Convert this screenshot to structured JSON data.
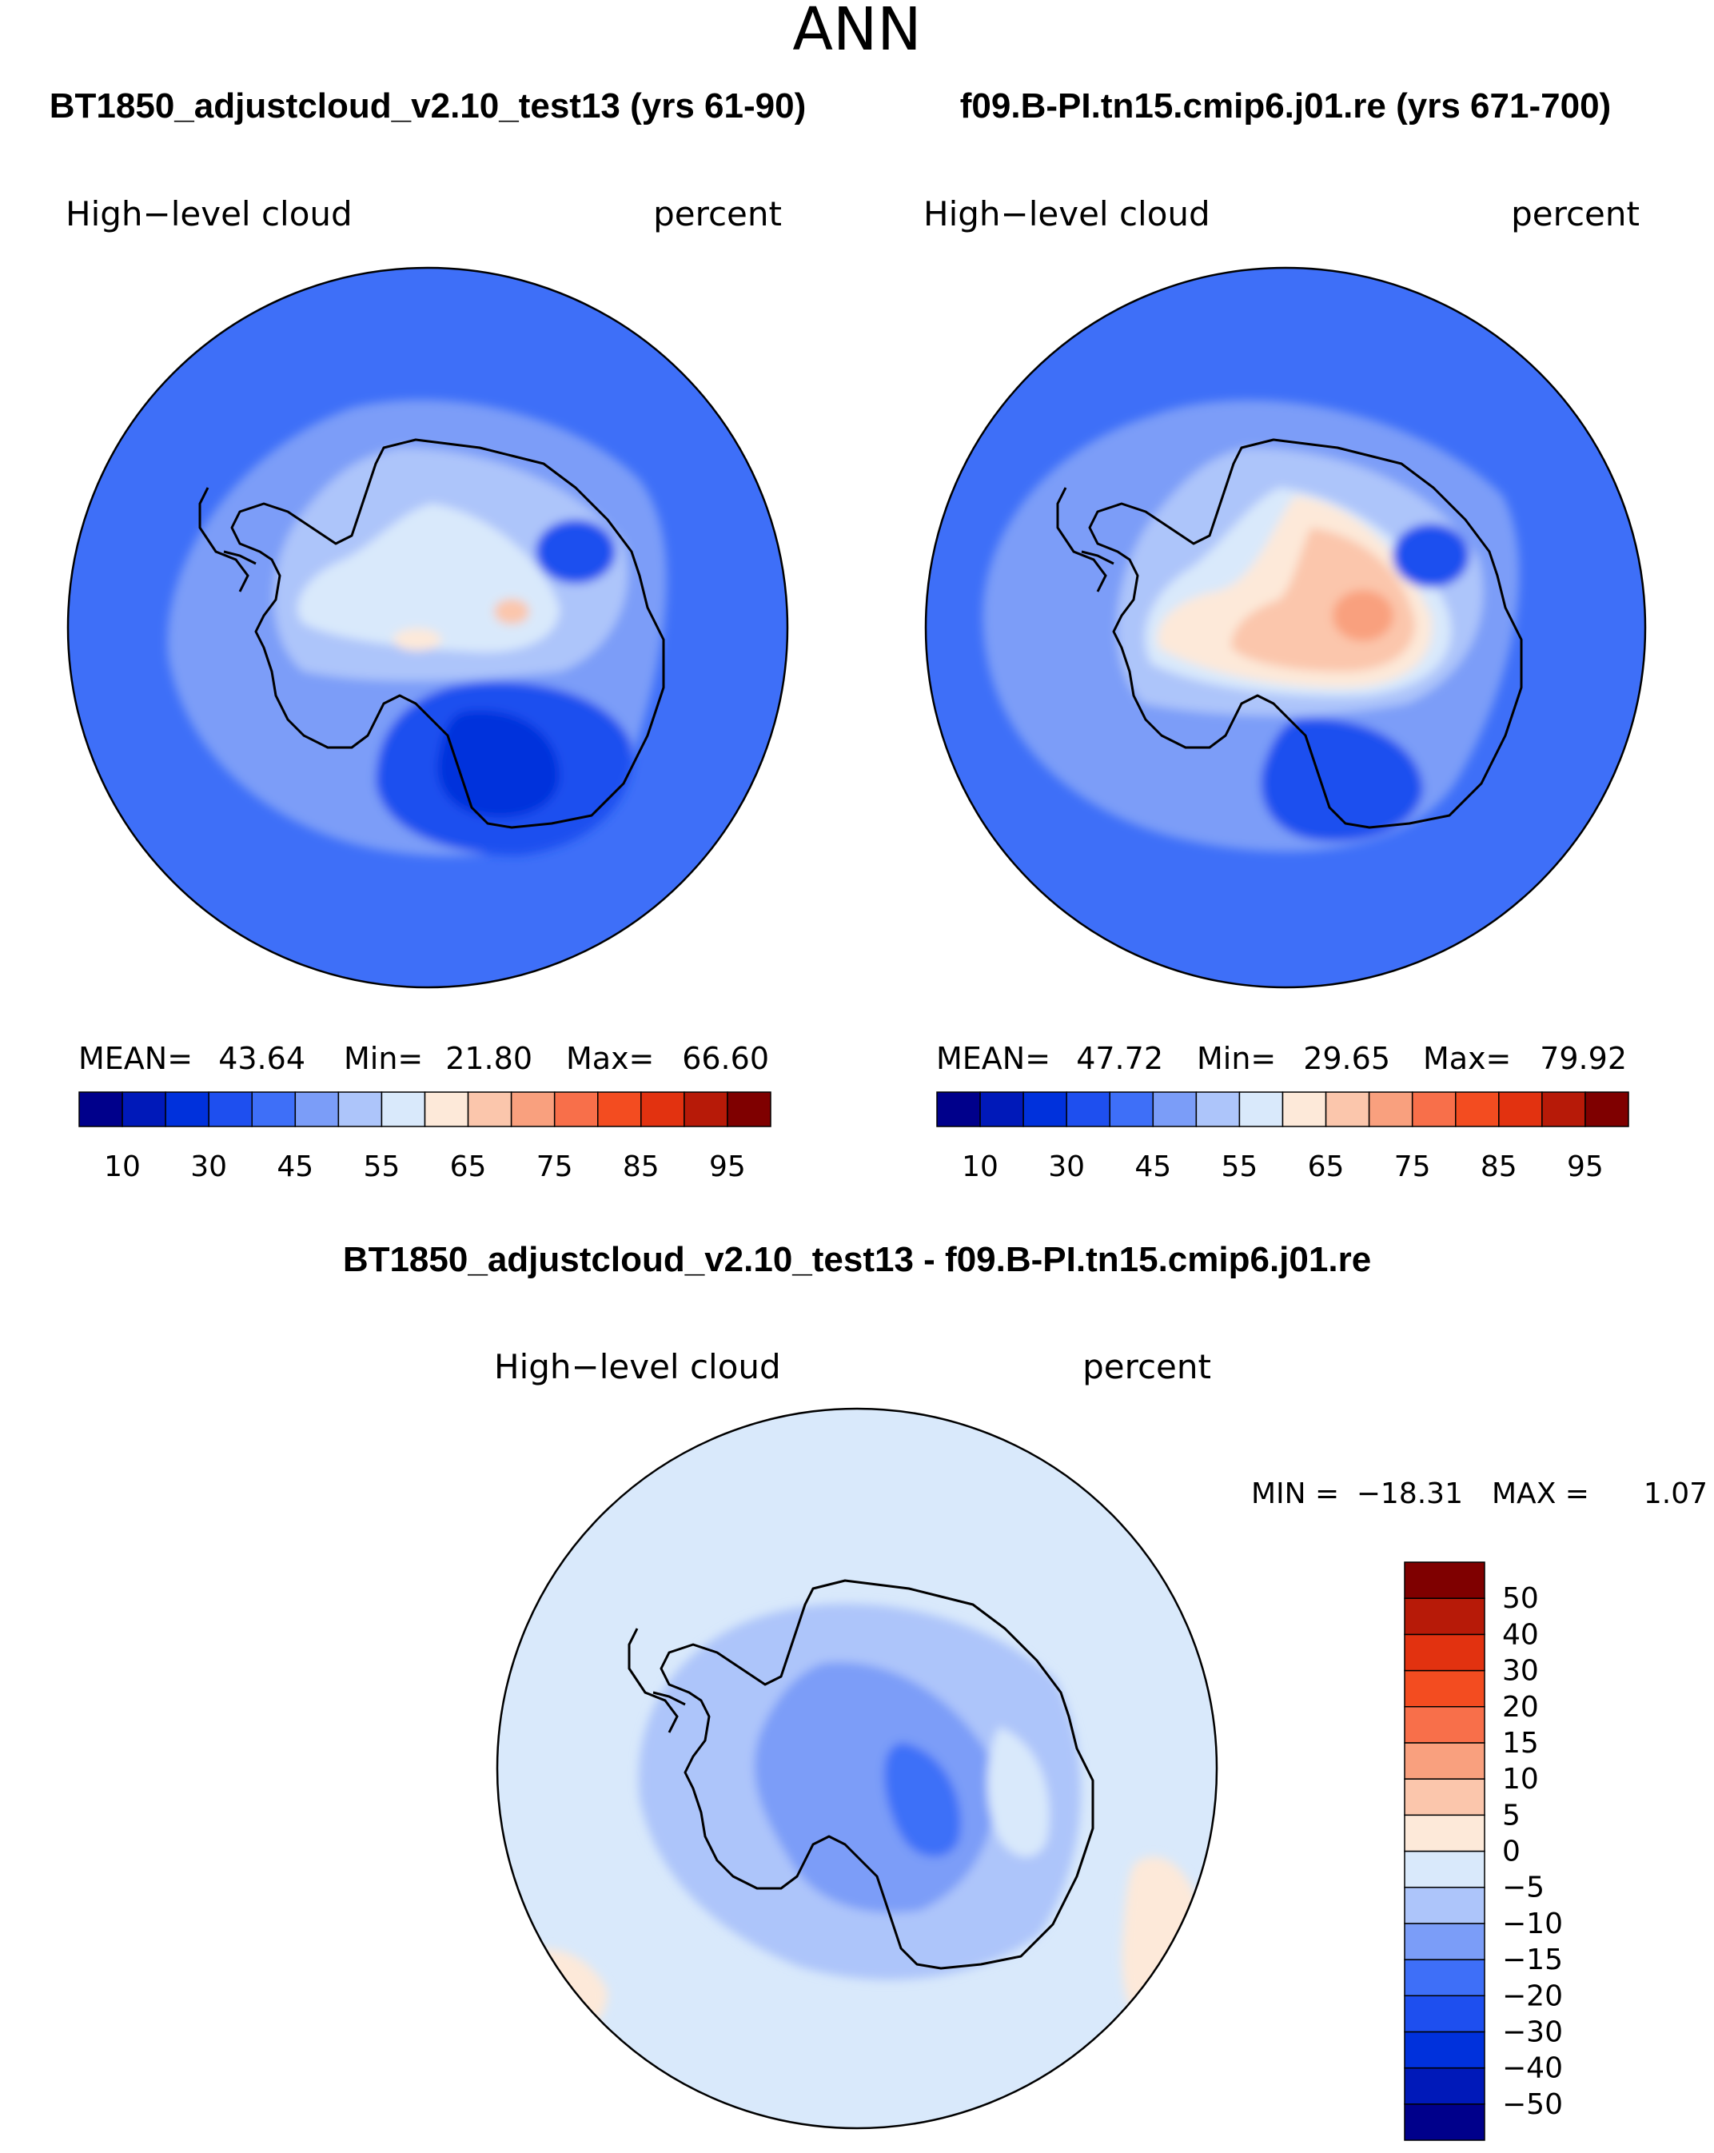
{
  "page": {
    "season": "ANN",
    "top_left_title": "BT1850_adjustcloud_v2.10_test13 (yrs 61-90)",
    "top_right_title": "f09.B-PI.tn15.cmip6.j01.re (yrs 671-700)",
    "bottom_title": "BT1850_adjustcloud_v2.10_test13 - f09.B-PI.tn15.cmip6.j01.re"
  },
  "colors": {
    "abs_scale": [
      "#00008b",
      "#0019b9",
      "#0031dc",
      "#1e4fef",
      "#3e6ff8",
      "#7b9df8",
      "#adc5fa",
      "#d9e9fb",
      "#fde9d9",
      "#fbc6ac",
      "#f9a07e",
      "#f86f4a",
      "#f34c20",
      "#e23210",
      "#b71a08",
      "#7f0000"
    ],
    "diff_scale": [
      "#00008b",
      "#0019b9",
      "#0031dc",
      "#1e4fef",
      "#3e6ff8",
      "#7b9df8",
      "#adc5fa",
      "#d9e9fb",
      "#fde9d9",
      "#fbc6ac",
      "#f9a07e",
      "#f86f4a",
      "#f34c20",
      "#e23210",
      "#b71a08",
      "#7f0000"
    ],
    "coastline": "#000000"
  },
  "chart_data": [
    {
      "id": "control",
      "type": "heatmap",
      "projection": "south-polar-stereographic",
      "title": "BT1850_adjustcloud_v2.10_test13 (yrs 61-90)",
      "variable": "High−level cloud",
      "units": "percent",
      "stats": {
        "mean_label": "MEAN=",
        "mean": "43.64",
        "min_label": "Min=",
        "min": "21.80",
        "max_label": "Max=",
        "max": "66.60"
      },
      "colorbar_levels": [
        10,
        30,
        45,
        55,
        65,
        75,
        85,
        95
      ],
      "colorbar_labels": [
        "10",
        "30",
        "45",
        "55",
        "65",
        "75",
        "85",
        "95"
      ],
      "background_value_range": [
        35,
        40
      ]
    },
    {
      "id": "reference",
      "type": "heatmap",
      "projection": "south-polar-stereographic",
      "title": "f09.B-PI.tn15.cmip6.j01.re (yrs 671-700)",
      "variable": "High−level cloud",
      "units": "percent",
      "stats": {
        "mean_label": "MEAN=",
        "mean": "47.72",
        "min_label": "Min=",
        "min": "29.65",
        "max_label": "Max=",
        "max": "79.92"
      },
      "colorbar_levels": [
        10,
        30,
        45,
        55,
        65,
        75,
        85,
        95
      ],
      "colorbar_labels": [
        "10",
        "30",
        "45",
        "55",
        "65",
        "75",
        "85",
        "95"
      ],
      "background_value_range": [
        35,
        40
      ]
    },
    {
      "id": "difference",
      "type": "heatmap",
      "projection": "south-polar-stereographic",
      "title": "BT1850_adjustcloud_v2.10_test13 - f09.B-PI.tn15.cmip6.j01.re",
      "variable": "High−level cloud",
      "units": "percent",
      "stats": {
        "min_label": "MIN = ",
        "min": "−18.31",
        "max_label": "MAX =",
        "max": "1.07"
      },
      "colorbar_levels": [
        50,
        40,
        30,
        20,
        15,
        10,
        5,
        0,
        -5,
        -10,
        -15,
        -20,
        -30,
        -40,
        -50
      ],
      "colorbar_labels": [
        "50",
        "40",
        "30",
        "20",
        "15",
        "10",
        "5",
        "0",
        "−5",
        "−10",
        "−15",
        "−20",
        "−30",
        "−40",
        "−50"
      ],
      "background_value_range": [
        -5,
        0
      ]
    }
  ]
}
